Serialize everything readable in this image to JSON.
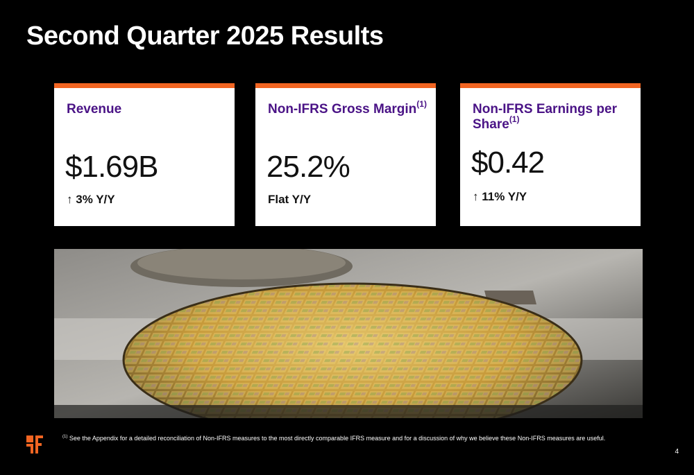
{
  "slide": {
    "title": "Second Quarter 2025 Results",
    "page_number": "4"
  },
  "cards": [
    {
      "label": "Revenue",
      "label_sup": "",
      "value": "$1.69B",
      "arrow": "↑",
      "change": "3% Y/Y"
    },
    {
      "label": "Non-IFRS Gross Margin",
      "label_sup": "(1)",
      "value": "25.2%",
      "arrow": "",
      "change": "Flat Y/Y"
    },
    {
      "label": "Non-IFRS Earnings per Share",
      "label_sup": "(1)",
      "value": "$0.42",
      "arrow": "↑",
      "change": "11% Y/Y"
    }
  ],
  "footnote": {
    "marker": "(1)",
    "text": "See the Appendix for a detailed reconciliation of Non-IFRS measures to the most directly comparable IFRS measure and for a discussion of why we believe these Non-IFRS measures are useful."
  },
  "image": {
    "icon": "semiconductor-wafer-photo"
  },
  "colors": {
    "accent": "#f26522",
    "label": "#4a1386",
    "background": "#000000"
  }
}
